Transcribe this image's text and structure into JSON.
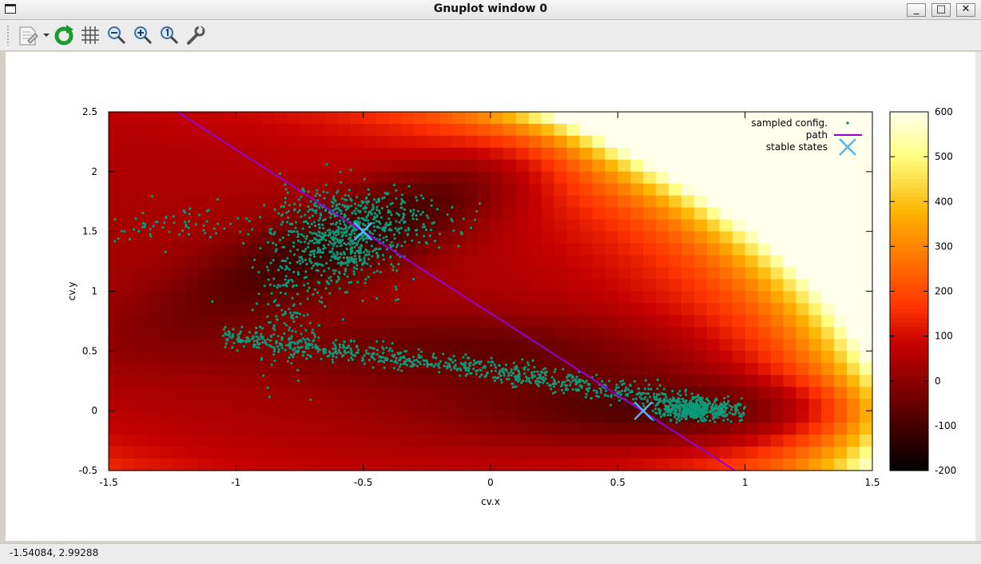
{
  "window": {
    "title": "Gnuplot window 0",
    "minimize_label": "_",
    "maximize_label": "□",
    "close_label": "✕"
  },
  "toolbar": {
    "icons": [
      "copy-to-clipboard-icon",
      "replot-icon",
      "grid-icon",
      "zoom-prev-icon",
      "zoom-next-icon",
      "autoscale-icon",
      "options-icon"
    ]
  },
  "status": {
    "coordinates": "-1.54084,  2.99288"
  },
  "colors": {
    "path": "#9400d3",
    "points": "#0a9a78",
    "stable": "#56b4e9"
  },
  "chart_data": {
    "type": "heatmap",
    "xlabel": "cv.x",
    "ylabel": "cv.y",
    "xlim": [
      -1.5,
      1.5
    ],
    "ylim": [
      -0.5,
      2.5
    ],
    "x_ticks": [
      "-1.5",
      "-1",
      "-0.5",
      "0",
      "0.5",
      "1",
      "1.5"
    ],
    "y_ticks": [
      "-0.5",
      "0",
      "0.5",
      "1",
      "1.5",
      "2",
      "2.5"
    ],
    "colorbar": {
      "range": [
        -200,
        600
      ],
      "ticks": [
        "-200",
        "-100",
        "0",
        "100",
        "200",
        "300",
        "400",
        "500",
        "600"
      ]
    },
    "legend": {
      "position": "top-right",
      "entries": [
        "sampled config.",
        "path",
        "stable states"
      ]
    },
    "path": {
      "x": [
        -1.23,
        0.96
      ],
      "y": [
        2.5,
        -0.5
      ]
    },
    "stable_states": {
      "x": [
        -0.5,
        0.6
      ],
      "y": [
        1.5,
        0.0
      ]
    }
  }
}
